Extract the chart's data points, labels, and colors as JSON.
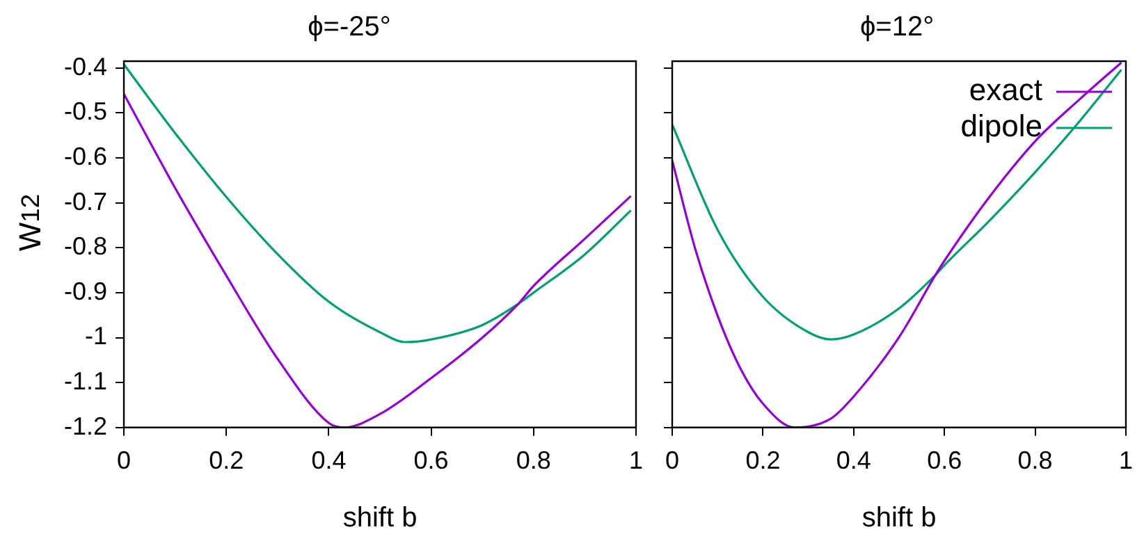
{
  "chart_data": [
    {
      "type": "line",
      "title": "ϕ=-25°",
      "xlabel": "shift b",
      "ylabel": "W$_{12}$",
      "xlim": [
        0,
        1
      ],
      "xticks": [
        0,
        0.2,
        0.4,
        0.6,
        0.8,
        1
      ],
      "ylim": [
        -1.2,
        -0.385
      ],
      "yticks": [
        -1.2,
        -1.1,
        -1,
        -0.9,
        -0.8,
        -0.7,
        -0.6,
        -0.5,
        -0.4
      ],
      "grid": false,
      "legend": false,
      "series": [
        {
          "color": "#9400d3",
          "x": [
            0,
            0.1,
            0.2,
            0.3,
            0.4,
            0.43,
            0.5,
            0.6,
            0.7,
            0.77,
            0.8,
            0.9,
            0.99
          ],
          "values": [
            -0.458,
            -0.667,
            -0.862,
            -1.047,
            -1.19,
            -1.2,
            -1.17,
            -1.09,
            -1.0,
            -0.925,
            -0.885,
            -0.78,
            -0.685
          ]
        },
        {
          "color": "#009e73",
          "x": [
            0,
            0.1,
            0.2,
            0.3,
            0.4,
            0.5,
            0.55,
            0.6,
            0.7,
            0.77,
            0.8,
            0.9,
            0.99
          ],
          "values": [
            -0.392,
            -0.545,
            -0.687,
            -0.814,
            -0.92,
            -0.988,
            -1.01,
            -1.004,
            -0.972,
            -0.925,
            -0.9,
            -0.815,
            -0.717
          ]
        }
      ]
    },
    {
      "type": "line",
      "title": "ϕ=12°",
      "xlabel": "shift b",
      "xlim": [
        0,
        1
      ],
      "xticks": [
        0,
        0.2,
        0.4,
        0.6,
        0.8,
        1
      ],
      "ylim": [
        -1.2,
        -0.385
      ],
      "yticks": [
        -1.2,
        -1.1,
        -1,
        -0.9,
        -0.8,
        -0.7,
        -0.6,
        -0.5,
        -0.4
      ],
      "tick_labels": "x",
      "grid": false,
      "legend": "top right",
      "series": [
        {
          "name": "exact",
          "color": "#9400d3",
          "x": [
            0,
            0.05,
            0.1,
            0.15,
            0.2,
            0.27,
            0.35,
            0.4,
            0.5,
            0.58,
            0.6,
            0.7,
            0.8,
            0.9,
            0.99
          ],
          "values": [
            -0.606,
            -0.8,
            -0.951,
            -1.068,
            -1.147,
            -1.2,
            -1.18,
            -1.131,
            -0.999,
            -0.861,
            -0.829,
            -0.686,
            -0.563,
            -0.468,
            -0.388
          ]
        },
        {
          "name": "dipole",
          "color": "#009e73",
          "x": [
            0,
            0.1,
            0.2,
            0.3,
            0.35,
            0.4,
            0.5,
            0.58,
            0.6,
            0.7,
            0.8,
            0.9,
            0.99
          ],
          "values": [
            -0.526,
            -0.76,
            -0.909,
            -0.988,
            -1.004,
            -0.993,
            -0.935,
            -0.861,
            -0.839,
            -0.739,
            -0.632,
            -0.516,
            -0.404
          ]
        }
      ]
    }
  ]
}
